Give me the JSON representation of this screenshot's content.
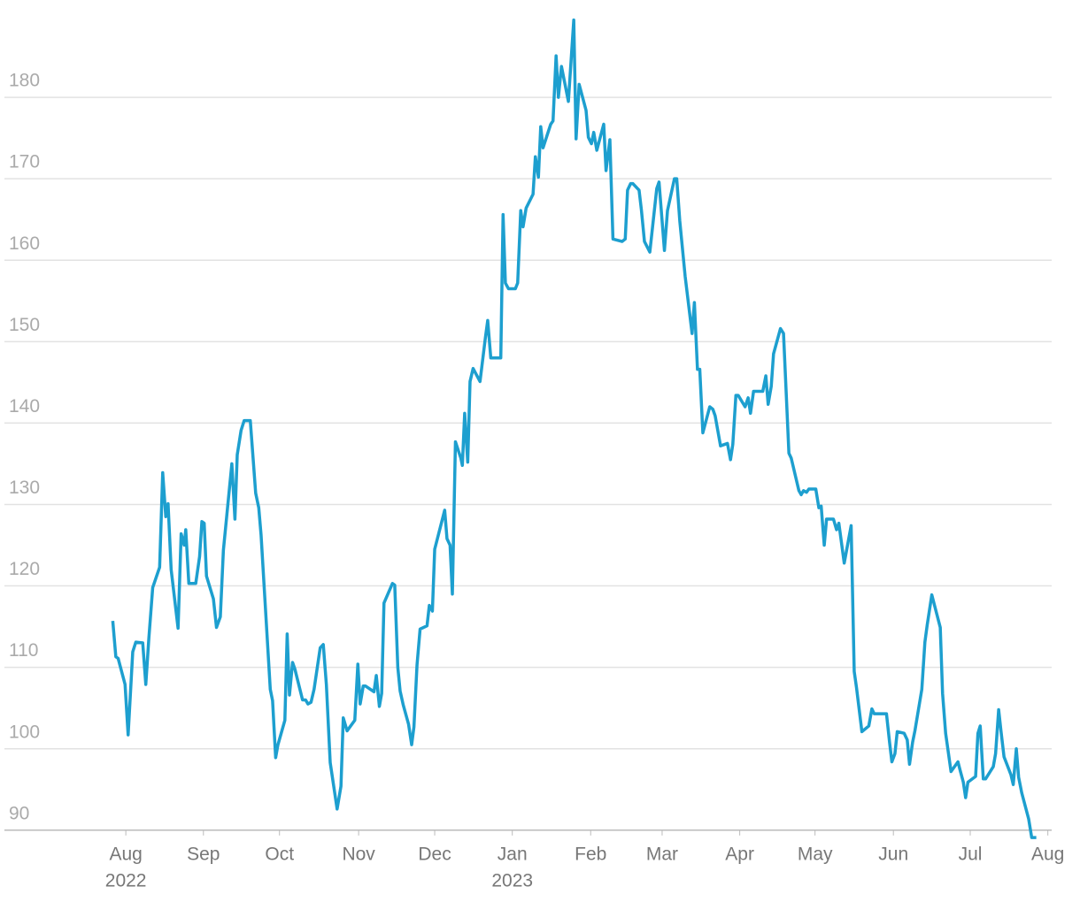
{
  "chart_data": {
    "type": "line",
    "xlim": [
      -1.58,
      12.05
    ],
    "ylim": [
      89,
      190
    ],
    "yticks": [
      90,
      100,
      110,
      120,
      130,
      140,
      150,
      160,
      170,
      180
    ],
    "xticks": [
      {
        "value": 0,
        "label": "Aug",
        "year": "2022"
      },
      {
        "value": 1.01,
        "label": "Sep"
      },
      {
        "value": 2.0,
        "label": "Oct"
      },
      {
        "value": 3.03,
        "label": "Nov"
      },
      {
        "value": 4.02,
        "label": "Dec"
      },
      {
        "value": 5.03,
        "label": "Jan",
        "year": "2023"
      },
      {
        "value": 6.05,
        "label": "Feb"
      },
      {
        "value": 6.98,
        "label": "Mar"
      },
      {
        "value": 7.99,
        "label": "Apr"
      },
      {
        "value": 8.97,
        "label": "May"
      },
      {
        "value": 9.99,
        "label": "Jun"
      },
      {
        "value": 10.99,
        "label": "Jul"
      },
      {
        "value": 12.0,
        "label": "Aug"
      }
    ],
    "grid": true,
    "x": [
      -0.17,
      -0.13,
      -0.1,
      -0.01,
      0.03,
      0.09,
      0.13,
      0.22,
      0.26,
      0.3,
      0.35,
      0.44,
      0.48,
      0.52,
      0.55,
      0.59,
      0.68,
      0.72,
      0.76,
      0.78,
      0.82,
      0.91,
      0.96,
      0.99,
      1.02,
      1.05,
      1.14,
      1.18,
      1.23,
      1.27,
      1.38,
      1.42,
      1.45,
      1.5,
      1.54,
      1.62,
      1.69,
      1.73,
      1.76,
      1.88,
      1.91,
      1.95,
      1.98,
      2.07,
      2.1,
      2.13,
      2.17,
      2.2,
      2.3,
      2.34,
      2.37,
      2.41,
      2.45,
      2.53,
      2.57,
      2.61,
      2.66,
      2.75,
      2.8,
      2.83,
      2.88,
      2.98,
      3.02,
      3.05,
      3.09,
      3.12,
      3.23,
      3.26,
      3.3,
      3.33,
      3.36,
      3.47,
      3.5,
      3.54,
      3.57,
      3.61,
      3.68,
      3.72,
      3.75,
      3.79,
      3.83,
      3.92,
      3.95,
      3.99,
      4.02,
      4.15,
      4.18,
      4.22,
      4.25,
      4.29,
      4.36,
      4.38,
      4.41,
      4.45,
      4.48,
      4.52,
      4.61,
      4.68,
      4.71,
      4.75,
      4.88,
      4.91,
      4.94,
      4.98,
      5.07,
      5.1,
      5.14,
      5.17,
      5.21,
      5.3,
      5.33,
      5.37,
      5.4,
      5.43,
      5.53,
      5.56,
      5.6,
      5.63,
      5.67,
      5.76,
      5.83,
      5.86,
      5.9,
      5.99,
      6.02,
      6.06,
      6.09,
      6.13,
      6.22,
      6.25,
      6.3,
      6.34,
      6.46,
      6.5,
      6.53,
      6.57,
      6.6,
      6.68,
      6.71,
      6.75,
      6.82,
      6.91,
      6.94,
      7.01,
      7.05,
      7.14,
      7.17,
      7.21,
      7.28,
      7.37,
      7.4,
      7.44,
      7.47,
      7.51,
      7.6,
      7.64,
      7.67,
      7.74,
      7.83,
      7.87,
      7.9,
      7.94,
      7.97,
      8.06,
      8.1,
      8.13,
      8.17,
      8.29,
      8.33,
      8.36,
      8.4,
      8.43,
      8.52,
      8.56,
      8.63,
      8.66,
      8.76,
      8.79,
      8.82,
      8.86,
      8.89,
      8.98,
      9.02,
      9.05,
      9.09,
      9.12,
      9.21,
      9.25,
      9.28,
      9.35,
      9.44,
      9.48,
      9.51,
      9.58,
      9.67,
      9.71,
      9.74,
      9.78,
      9.9,
      9.94,
      9.97,
      10.01,
      10.04,
      10.13,
      10.17,
      10.2,
      10.24,
      10.27,
      10.36,
      10.4,
      10.43,
      10.49,
      10.6,
      10.63,
      10.67,
      10.74,
      10.83,
      10.86,
      10.9,
      10.93,
      10.96,
      11.06,
      11.09,
      11.12,
      11.16,
      11.19,
      11.29,
      11.32,
      11.36,
      11.39,
      11.43,
      11.52,
      11.55,
      11.59,
      11.62,
      11.66,
      11.75,
      11.79,
      11.85
    ],
    "series": [
      {
        "color": "#1d9fcf",
        "values": [
          115.7,
          111.3,
          111.1,
          107.9,
          101.7,
          111.9,
          113.1,
          113.0,
          107.9,
          113.6,
          119.8,
          122.3,
          133.9,
          128.5,
          130.1,
          122.0,
          114.8,
          126.4,
          125.0,
          126.9,
          120.3,
          120.3,
          123.6,
          127.9,
          127.7,
          121.2,
          118.4,
          114.9,
          116.2,
          124.4,
          135.0,
          128.2,
          136.1,
          139.1,
          140.3,
          140.3,
          131.4,
          129.6,
          126.3,
          107.3,
          105.9,
          98.9,
          100.5,
          103.5,
          114.1,
          106.6,
          110.6,
          109.8,
          106.0,
          106.0,
          105.5,
          105.7,
          107.3,
          112.4,
          112.8,
          107.9,
          98.3,
          92.6,
          95.4,
          103.8,
          102.2,
          103.5,
          110.4,
          105.5,
          107.7,
          107.7,
          107.0,
          109.0,
          105.2,
          106.8,
          117.9,
          120.3,
          120.1,
          110.0,
          107.1,
          105.4,
          103.0,
          100.5,
          102.7,
          110.3,
          114.7,
          115.1,
          117.6,
          116.9,
          124.5,
          129.3,
          125.8,
          125.0,
          119.0,
          137.7,
          135.7,
          134.8,
          141.2,
          135.2,
          145.1,
          146.7,
          145.1,
          150.5,
          152.6,
          148.0,
          148.0,
          165.6,
          157.2,
          156.5,
          156.5,
          157.2,
          166.1,
          164.1,
          166.4,
          168.1,
          172.7,
          170.2,
          176.4,
          173.8,
          176.7,
          177.1,
          185.1,
          180.0,
          183.8,
          179.5,
          189.5,
          174.9,
          181.6,
          178.4,
          175.1,
          174.3,
          175.7,
          173.5,
          176.7,
          171.0,
          174.8,
          162.6,
          162.3,
          162.6,
          168.6,
          169.4,
          169.4,
          168.6,
          166.2,
          162.3,
          161.0,
          168.8,
          169.6,
          161.2,
          166.1,
          170.0,
          170.0,
          164.8,
          158.0,
          151.0,
          154.8,
          146.6,
          146.6,
          138.8,
          142.0,
          141.7,
          140.9,
          137.2,
          137.5,
          135.5,
          137.4,
          143.4,
          143.4,
          142.0,
          143.1,
          141.2,
          143.9,
          143.9,
          145.8,
          142.3,
          144.5,
          148.5,
          151.6,
          151.0,
          136.3,
          135.7,
          131.7,
          131.2,
          131.7,
          131.5,
          131.9,
          131.9,
          129.6,
          129.8,
          125.0,
          128.2,
          128.2,
          126.9,
          127.7,
          122.8,
          127.4,
          109.5,
          107.5,
          102.1,
          102.8,
          104.9,
          104.3,
          104.3,
          104.3,
          100.8,
          98.4,
          99.4,
          102.1,
          101.9,
          101.1,
          98.1,
          100.8,
          102.2,
          107.3,
          113.1,
          115.2,
          118.9,
          114.9,
          106.8,
          101.9,
          97.2,
          98.4,
          97.3,
          95.9,
          94.0,
          95.9,
          96.6,
          101.9,
          102.8,
          96.3,
          96.3,
          97.8,
          99.4,
          104.8,
          102.2,
          99.0,
          96.8,
          95.6,
          100.0,
          96.5,
          94.6,
          91.4,
          89.1,
          89.1
        ]
      }
    ]
  }
}
